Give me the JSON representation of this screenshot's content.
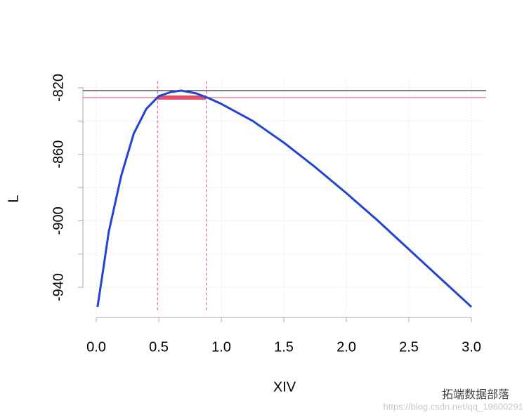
{
  "chart_data": {
    "type": "line",
    "x_label": "XIV",
    "y_label": "L",
    "x": [
      0.01,
      0.05,
      0.1,
      0.2,
      0.3,
      0.4,
      0.5,
      0.6,
      0.68,
      0.8,
      0.9,
      1.0,
      1.25,
      1.5,
      1.75,
      2.0,
      2.25,
      2.5,
      2.75,
      3.0
    ],
    "values": [
      -951.8,
      -932,
      -906.6,
      -872.8,
      -847.5,
      -832.7,
      -825,
      -822.5,
      -821.7,
      -823.4,
      -826.3,
      -829.7,
      -839.9,
      -853,
      -867.7,
      -883.4,
      -899.8,
      -917.2,
      -934.5,
      -951.8
    ],
    "color": "#2143d6",
    "max_line": -821.7,
    "max_line_color": "#000000",
    "cutoff_line": -825.9,
    "interval": [
      0.49,
      0.88
    ],
    "interval_color": "#e0506a",
    "xlim": [
      -0.107,
      3.118
    ],
    "ylim": [
      -955,
      -816
    ],
    "xticks": [
      {
        "value": 0,
        "label": "0.0"
      },
      0.5,
      {
        "value": 1,
        "label": "1.0"
      },
      1.5,
      {
        "value": 2,
        "label": "2.0"
      },
      2.5,
      {
        "value": 3,
        "label": "3.0"
      }
    ],
    "yticks": [
      -820,
      -860,
      -900,
      -940
    ],
    "ygrid": [
      -820,
      -840,
      -860,
      -880,
      -900,
      -920,
      -940
    ],
    "grid": true,
    "watermark": "拓端数据部落",
    "watermark_url": "https://blog.csdn.net/qq_19600291"
  }
}
